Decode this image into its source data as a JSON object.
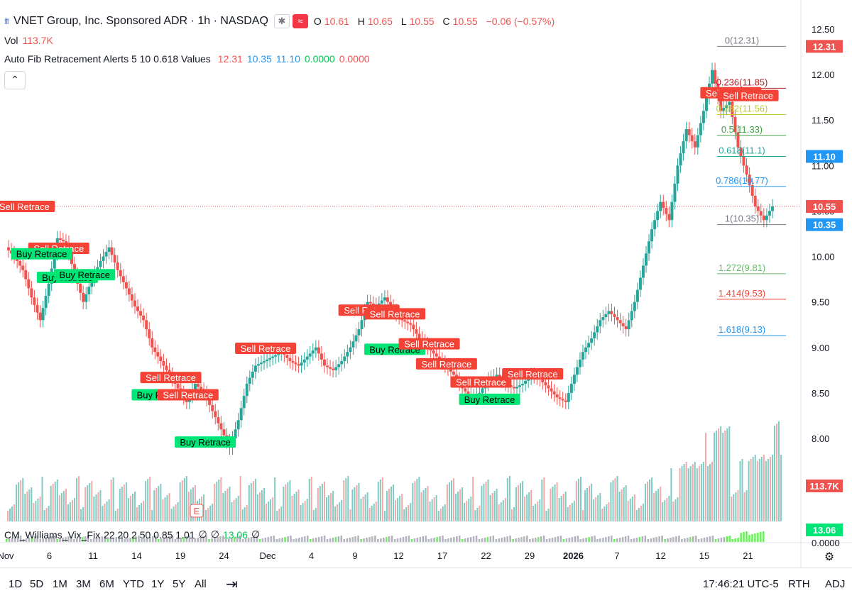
{
  "header": {
    "symbol_icon": "tradingview-icon",
    "title": "VNET Group, Inc. Sponsored ADR · 1h · NASDAQ",
    "ohlc": {
      "o_label": "O",
      "o": "10.61",
      "h_label": "H",
      "h": "10.65",
      "l_label": "L",
      "l": "10.55",
      "c_label": "C",
      "c": "10.55",
      "change": "−0.06 (−0.57%)"
    },
    "vol_label": "Vol",
    "vol_value": "113.7K",
    "indicator_name": "Auto Fib Retracement Alerts 5 10 0.618 Values",
    "indicator_values": [
      "12.31",
      "10.35",
      "11.10",
      "0.0000",
      "0.0000"
    ]
  },
  "colors": {
    "up": "#26a69a",
    "down": "#ef5350",
    "buy": "#00e676",
    "sell": "#f44336",
    "purple": "#9c27b0",
    "blue": "#2962ff"
  },
  "chart_data": {
    "type": "candlestick",
    "title": "VNET Group, Inc. Sponsored ADR · 1h · NASDAQ",
    "ylim": [
      8.0,
      12.5
    ],
    "y_ticks": [
      "12.50",
      "12.00",
      "11.50",
      "11.00",
      "10.50",
      "10.00",
      "9.50",
      "9.00",
      "8.50",
      "8.00"
    ],
    "x_ticks": [
      "Nov",
      "6",
      "11",
      "14",
      "19",
      "24",
      "Dec",
      "4",
      "9",
      "12",
      "17",
      "22",
      "29",
      "2026",
      "7",
      "12",
      "15",
      "21"
    ],
    "price_tags": [
      {
        "label": "12.31",
        "value": 12.31,
        "color": "#ef5350"
      },
      {
        "label": "11.10",
        "value": 11.1,
        "color": "#2196f3"
      },
      {
        "label": "10.55",
        "value": 10.55,
        "color": "#ef5350"
      },
      {
        "label": "10.35",
        "value": 10.35,
        "color": "#2196f3"
      },
      {
        "label": "113.7K",
        "value": 0,
        "color": "#ef5350",
        "pane": "volume"
      },
      {
        "label": "13.06",
        "value": 0,
        "color": "#00e676",
        "pane": "vix"
      }
    ],
    "fib_levels": [
      {
        "label": "0(12.31)",
        "value": 12.31,
        "color": "#787b86"
      },
      {
        "label": "0.236(11.85)",
        "value": 11.85,
        "color": "#b71c1c"
      },
      {
        "label": "0.382(11.56)",
        "value": 11.56,
        "color": "#c0ca33"
      },
      {
        "label": "0.5(11.33)",
        "value": 11.33,
        "color": "#43a047"
      },
      {
        "label": "0.618(11.1)",
        "value": 11.1,
        "color": "#26a69a"
      },
      {
        "label": "0.786(10.77)",
        "value": 10.77,
        "color": "#2196f3"
      },
      {
        "label": "1(10.35)",
        "value": 10.35,
        "color": "#787b86"
      },
      {
        "label": "1.272(9.81)",
        "value": 9.81,
        "color": "#66bb6a"
      },
      {
        "label": "1.414(9.53)",
        "value": 9.53,
        "color": "#f44336"
      },
      {
        "label": "1.618(9.13)",
        "value": 9.13,
        "color": "#2196f3"
      }
    ],
    "current_price": 10.55,
    "series": [
      {
        "name": "Price",
        "values": [
          10.1,
          10.0,
          9.85,
          9.55,
          9.3,
          9.7,
          10.2,
          10.15,
          9.8,
          9.5,
          9.75,
          9.95,
          10.1,
          9.85,
          9.65,
          9.45,
          9.3,
          9.0,
          8.85,
          8.7,
          8.55,
          8.4,
          8.6,
          8.5,
          8.3,
          8.1,
          7.9,
          8.2,
          8.6,
          8.8,
          8.85,
          8.9,
          8.95,
          8.85,
          8.8,
          8.9,
          9.0,
          8.8,
          8.75,
          8.85,
          9.0,
          9.2,
          9.5,
          9.45,
          9.55,
          9.4,
          9.3,
          9.25,
          9.1,
          9.0,
          8.9,
          8.8,
          8.7,
          8.55,
          8.45,
          8.5,
          8.65,
          8.7,
          8.6,
          8.55,
          8.6,
          8.7,
          8.65,
          8.55,
          8.45,
          8.4,
          8.7,
          8.95,
          9.1,
          9.3,
          9.4,
          9.3,
          9.2,
          9.5,
          9.9,
          10.3,
          10.6,
          10.4,
          11.0,
          11.4,
          11.2,
          11.6,
          12.05,
          11.6,
          11.7,
          11.2,
          10.9,
          10.55,
          10.4,
          10.55
        ]
      }
    ],
    "markers": [
      {
        "label": "Sell Retrace",
        "type": "sell",
        "i": 2,
        "v": 10.55
      },
      {
        "label": "Sell Retrace",
        "type": "sell",
        "i": 6,
        "v": 10.09
      },
      {
        "label": "Buy Retrace",
        "type": "buy",
        "i": 4,
        "v": 10.03
      },
      {
        "label": "Buy Retrace",
        "type": "buy",
        "i": 7,
        "v": 9.77
      },
      {
        "label": "Buy Retrace",
        "type": "buy",
        "i": 9,
        "v": 9.8
      },
      {
        "label": "Sell Retrace",
        "type": "sell",
        "i": 19,
        "v": 8.67
      },
      {
        "label": "Buy Retrace",
        "type": "buy",
        "i": 18,
        "v": 8.48
      },
      {
        "label": "Sell Retrace",
        "type": "sell",
        "i": 21,
        "v": 8.48
      },
      {
        "label": "Buy Retrace",
        "type": "buy",
        "i": 23,
        "v": 7.96
      },
      {
        "label": "Sell Retrace",
        "type": "sell",
        "i": 30,
        "v": 8.99
      },
      {
        "label": "Sell Retrace",
        "type": "sell",
        "i": 42,
        "v": 9.41
      },
      {
        "label": "Sell Retrace",
        "type": "sell",
        "i": 45,
        "v": 9.37
      },
      {
        "label": "Buy Retrace",
        "type": "buy",
        "i": 45,
        "v": 8.98
      },
      {
        "label": "Sell Retrace",
        "type": "sell",
        "i": 49,
        "v": 9.04
      },
      {
        "label": "Sell Retrace",
        "type": "sell",
        "i": 51,
        "v": 8.82
      },
      {
        "label": "Sell Retrace",
        "type": "sell",
        "i": 55,
        "v": 8.62
      },
      {
        "label": "Buy Retrace",
        "type": "buy",
        "i": 56,
        "v": 8.43
      },
      {
        "label": "Sell Retrace",
        "type": "sell",
        "i": 61,
        "v": 8.71
      },
      {
        "label": "Sell Retrace",
        "type": "sell",
        "i": 84,
        "v": 11.8
      },
      {
        "label": "Sell Retrace",
        "type": "sell",
        "i": 86,
        "v": 11.77
      }
    ]
  },
  "vix": {
    "name": "CM_Williams_Vix_Fix",
    "params": "22 20 2 50 0.85 1.01",
    "v1": "∅",
    "v2": "∅",
    "v3": "13.06",
    "v4": "∅",
    "axis_label": "0.0000"
  },
  "bottom": {
    "ranges": [
      "1D",
      "5D",
      "1M",
      "3M",
      "6M",
      "YTD",
      "1Y",
      "5Y",
      "All"
    ],
    "time": "17:46:21 UTC-5",
    "session": "RTH",
    "adj": "ADJ"
  },
  "earnings_label": "E"
}
